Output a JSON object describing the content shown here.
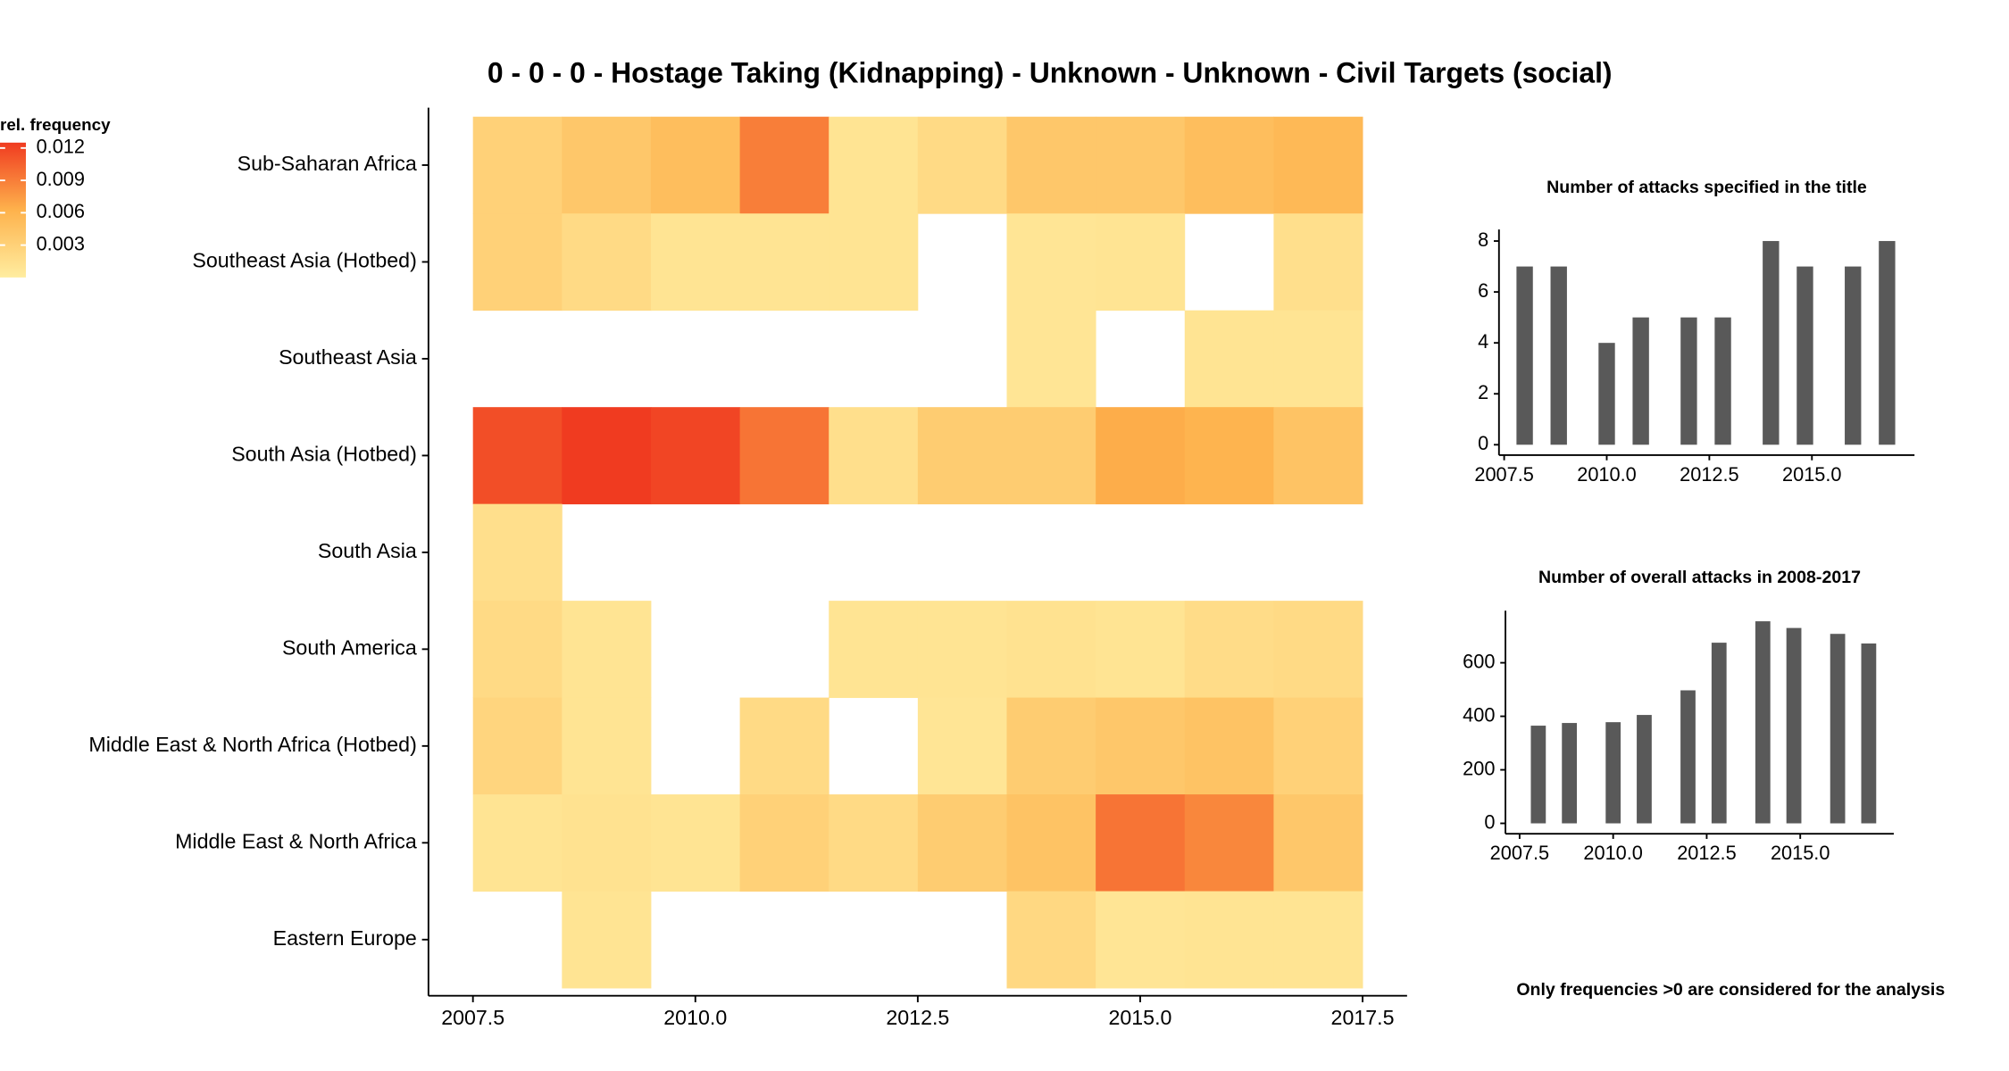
{
  "chart_data": [
    {
      "type": "heatmap",
      "title": "0 - 0 - 0 - Hostage Taking (Kidnapping) - Unknown - Unknown - Civil Targets (social)",
      "caption": "Only frequencies >0 are considered for the analysis",
      "x": [
        2008,
        2009,
        2010,
        2011,
        2012,
        2013,
        2014,
        2015,
        2016,
        2017
      ],
      "categories": [
        "Sub-Saharan Africa",
        "Southeast Asia (Hotbed)",
        "Southeast Asia",
        "South Asia (Hotbed)",
        "South Asia",
        "South America",
        "Middle East & North Africa (Hotbed)",
        "Middle East & North Africa",
        "Eastern Europe"
      ],
      "z": [
        [
          0.003,
          0.004,
          0.005,
          0.009,
          0.001,
          0.002,
          0.004,
          0.004,
          0.005,
          0.0055
        ],
        [
          0.003,
          0.002,
          0.001,
          0.001,
          0.001,
          null,
          0.0008,
          0.001,
          null,
          0.0015
        ],
        [
          null,
          null,
          null,
          null,
          null,
          null,
          0.0008,
          null,
          0.001,
          0.001
        ],
        [
          0.0115,
          0.013,
          0.012,
          0.0095,
          0.0015,
          0.0035,
          0.0035,
          0.0065,
          0.006,
          0.0045
        ],
        [
          0.0015,
          null,
          null,
          null,
          null,
          null,
          null,
          null,
          null,
          null
        ],
        [
          0.002,
          0.001,
          null,
          null,
          0.001,
          0.001,
          0.0012,
          0.001,
          0.0018,
          0.002
        ],
        [
          0.0025,
          0.001,
          null,
          0.002,
          null,
          0.0008,
          0.0035,
          0.004,
          0.0045,
          0.003
        ],
        [
          0.001,
          0.0012,
          0.001,
          0.003,
          0.002,
          0.0035,
          0.0045,
          0.0095,
          0.0085,
          0.004
        ],
        [
          null,
          0.001,
          null,
          null,
          null,
          null,
          0.0022,
          0.0008,
          0.001,
          0.001
        ]
      ],
      "xlim": [
        2007,
        2018
      ],
      "xticks": [
        2007.5,
        {
          "value": 2010,
          "label": "2010.0"
        },
        2012.5,
        {
          "value": 2015,
          "label": "2015.0"
        },
        2017.5
      ],
      "legend_title": "rel. frequency",
      "clim": [
        0,
        0.0125
      ],
      "cticks": [
        0.003,
        0.006,
        0.009,
        0.012
      ],
      "colorscale": [
        "#ffeda0",
        "#feb24c",
        "#f03b20"
      ]
    },
    {
      "type": "bar",
      "title": "Number of attacks specified in the title",
      "x": [
        2008,
        2008.83,
        2010,
        2010.83,
        2012,
        2012.83,
        2014,
        2014.83,
        2016,
        2016.83
      ],
      "values": [
        7,
        7,
        4,
        5,
        5,
        5,
        8,
        7,
        7,
        8
      ],
      "color": "#595959",
      "xlim": [
        2007.5,
        2017.5
      ],
      "xticks": [
        2007.5,
        {
          "value": 2010,
          "label": "2010.0"
        },
        2012.5,
        {
          "value": 2015,
          "label": "2015.0"
        }
      ],
      "ylim": [
        0,
        8.3
      ],
      "yticks": [
        0,
        2,
        4,
        6,
        8
      ]
    },
    {
      "type": "bar",
      "title": "Number of overall attacks in 2008-2017",
      "x": [
        2008,
        2008.83,
        2010,
        2010.83,
        2012,
        2012.83,
        2014,
        2014.83,
        2016,
        2016.83
      ],
      "values": [
        365,
        375,
        378,
        405,
        497,
        675,
        755,
        730,
        708,
        672
      ],
      "color": "#595959",
      "xlim": [
        2007.26,
        2017.5
      ],
      "xticks": [
        2007.5,
        {
          "value": 2010,
          "label": "2010.0"
        },
        2012.5,
        {
          "value": 2015,
          "label": "2015.0"
        }
      ],
      "ylim": [
        0,
        780
      ],
      "yticks": [
        0,
        200,
        400,
        600
      ]
    }
  ]
}
